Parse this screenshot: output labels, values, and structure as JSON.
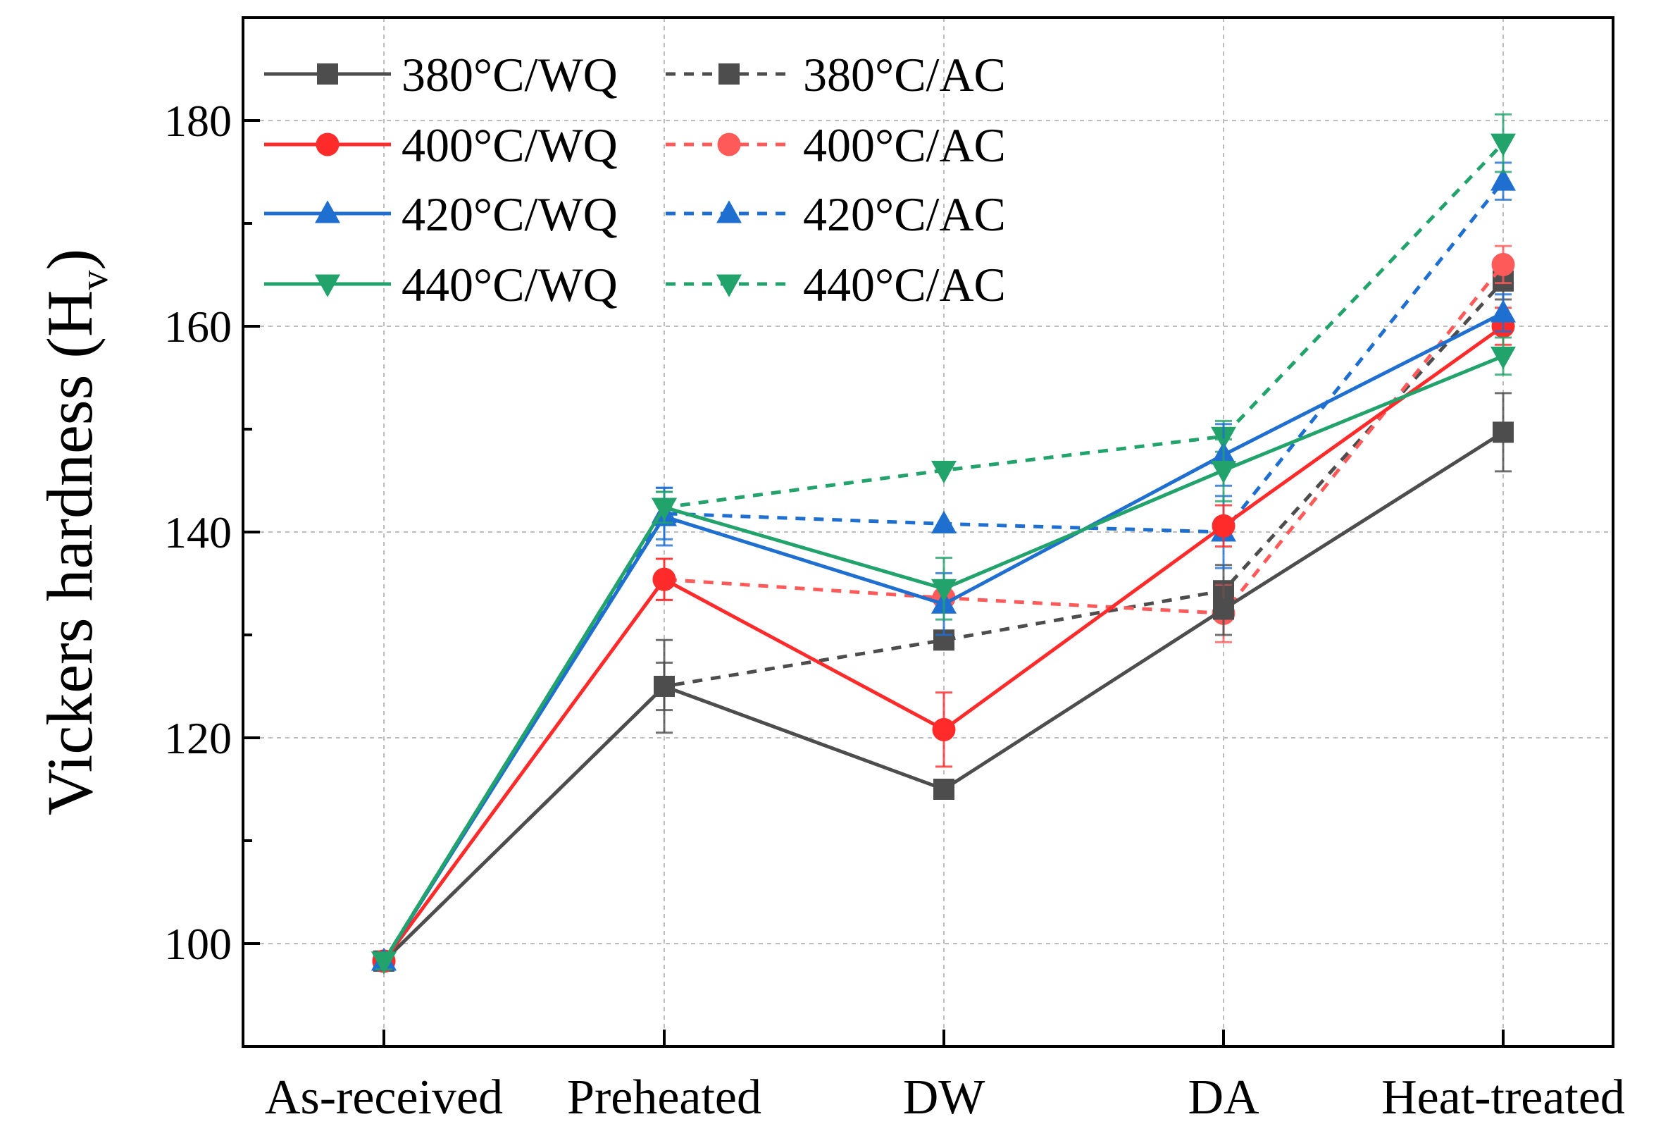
{
  "chart_data": {
    "type": "line",
    "title": "",
    "xlabel": "",
    "ylabel": "Vickers hardness (H",
    "ylabel_sub": "v",
    "ylabel_close": ")",
    "categories": [
      "As-received",
      "Preheated",
      "DW",
      "DA",
      "Heat-treated"
    ],
    "ylim": [
      90,
      190
    ],
    "yticks": [
      100,
      120,
      140,
      160,
      180
    ],
    "grid": true,
    "legend_position": "top-left",
    "series": [
      {
        "name": "380°C/WQ",
        "color": "#4d4d4d",
        "dash": false,
        "marker": "square",
        "values": [
          98.3,
          125,
          115,
          132.5,
          149.7
        ],
        "errors": [
          0.8,
          4.5,
          0.8,
          2.5,
          3.8
        ]
      },
      {
        "name": "400°C/WQ",
        "color": "#ff2a2a",
        "dash": false,
        "marker": "circle",
        "values": [
          98.3,
          135.4,
          120.8,
          140.6,
          160
        ],
        "errors": [
          0.8,
          2.0,
          3.6,
          2.0,
          1.8
        ]
      },
      {
        "name": "420°C/WQ",
        "color": "#1f6fd1",
        "dash": false,
        "marker": "triangle",
        "values": [
          98.3,
          141.5,
          133,
          147.5,
          161.3
        ],
        "errors": [
          0.8,
          2.8,
          3.0,
          3.0,
          1.8
        ]
      },
      {
        "name": "440°C/WQ",
        "color": "#21a36b",
        "dash": false,
        "marker": "tri-down",
        "values": [
          98.3,
          142.4,
          134.5,
          146,
          157.1
        ],
        "errors": [
          0.8,
          1.5,
          3.0,
          3.0,
          1.8
        ]
      },
      {
        "name": "380°C/AC",
        "color": "#4d4d4d",
        "dash": true,
        "marker": "square",
        "values": [
          98.3,
          125,
          129.5,
          134.3,
          164.4
        ],
        "errors": [
          0.8,
          2.3,
          0,
          2.5,
          1.8
        ]
      },
      {
        "name": "400°C/AC",
        "color": "#ff5a5a",
        "dash": true,
        "marker": "circle",
        "values": [
          98.3,
          135.4,
          133.6,
          132.1,
          166
        ],
        "errors": [
          0.8,
          2.0,
          0,
          2.8,
          1.8
        ]
      },
      {
        "name": "420°C/AC",
        "color": "#1f6fd1",
        "dash": true,
        "marker": "triangle",
        "values": [
          98.3,
          141.8,
          140.8,
          140,
          174.1
        ],
        "errors": [
          0.8,
          2.5,
          0,
          3.5,
          1.8
        ]
      },
      {
        "name": "440°C/AC",
        "color": "#21a36b",
        "dash": true,
        "marker": "tri-down",
        "values": [
          98.3,
          142.4,
          146,
          149.3,
          177.8
        ],
        "errors": [
          0.8,
          1.5,
          0,
          1.5,
          2.8
        ]
      }
    ]
  }
}
